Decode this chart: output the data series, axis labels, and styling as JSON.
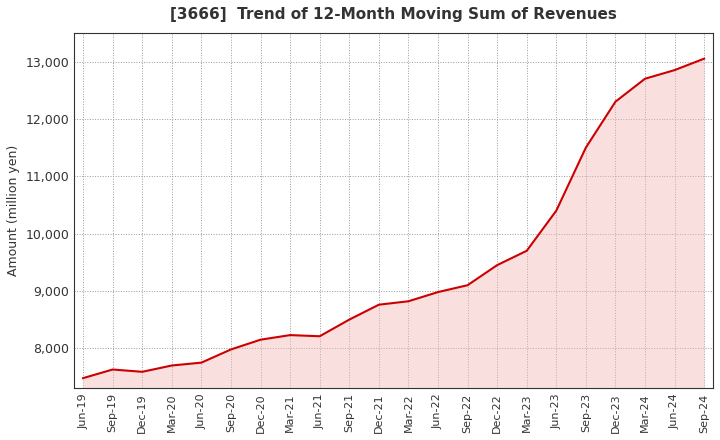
{
  "title": "[3666]  Trend of 12-Month Moving Sum of Revenues",
  "ylabel": "Amount (million yen)",
  "background_color": "#ffffff",
  "plot_bg_color": "#ffffff",
  "line_color": "#cc0000",
  "fill_color": "#f5b8b8",
  "line_width": 1.5,
  "x_labels": [
    "Jun-19",
    "Sep-19",
    "Dec-19",
    "Mar-20",
    "Jun-20",
    "Sep-20",
    "Dec-20",
    "Mar-21",
    "Jun-21",
    "Sep-21",
    "Dec-21",
    "Mar-22",
    "Jun-22",
    "Sep-22",
    "Dec-22",
    "Mar-23",
    "Jun-23",
    "Sep-23",
    "Dec-23",
    "Mar-24",
    "Jun-24",
    "Sep-24"
  ],
  "ylim": [
    7300,
    13500
  ],
  "yticks": [
    8000,
    9000,
    10000,
    11000,
    12000,
    13000
  ],
  "revenues": [
    7480,
    7630,
    7590,
    7700,
    7750,
    7980,
    8150,
    8230,
    8210,
    8500,
    8760,
    8820,
    8980,
    9100,
    9450,
    9700,
    10400,
    11500,
    12300,
    12700,
    12850,
    13050
  ]
}
